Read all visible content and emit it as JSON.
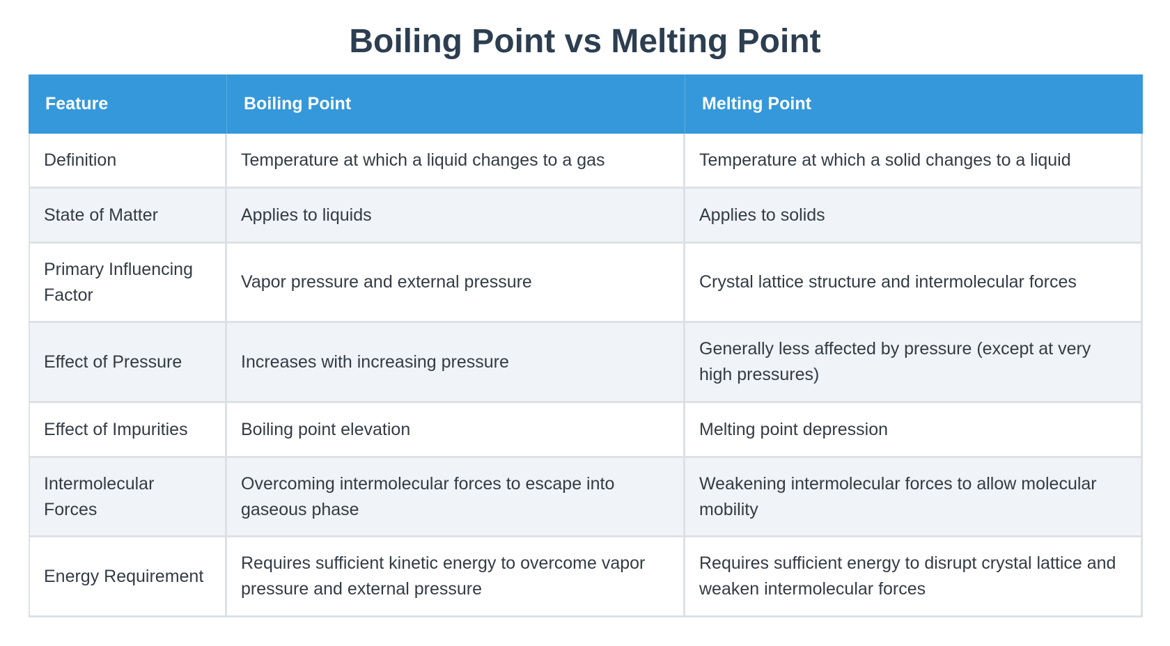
{
  "title": "Boiling Point vs Melting Point",
  "colors": {
    "header_bg": "#3498db",
    "header_text": "#ffffff",
    "title": "#2c3e50",
    "row_alt": "#f0f3f7",
    "border": "#dde1e5"
  },
  "table": {
    "headers": [
      "Feature",
      "Boiling Point",
      "Melting Point"
    ],
    "rows": [
      {
        "feature": "Definition",
        "boiling": "Temperature at which a liquid changes to a gas",
        "melting": "Temperature at which a solid changes to a liquid"
      },
      {
        "feature": "State of Matter",
        "boiling": "Applies to liquids",
        "melting": "Applies to solids"
      },
      {
        "feature": "Primary Influencing Factor",
        "boiling": "Vapor pressure and external pressure",
        "melting": "Crystal lattice structure and intermolecular forces"
      },
      {
        "feature": "Effect of Pressure",
        "boiling": "Increases with increasing pressure",
        "melting": "Generally less affected by pressure (except at very high pressures)"
      },
      {
        "feature": "Effect of Impurities",
        "boiling": "Boiling point elevation",
        "melting": "Melting point depression"
      },
      {
        "feature": "Intermolecular Forces",
        "boiling": "Overcoming intermolecular forces to escape into gaseous phase",
        "melting": "Weakening intermolecular forces to allow molecular mobility"
      },
      {
        "feature": "Energy Requirement",
        "boiling": "Requires sufficient kinetic energy to overcome vapor pressure and external pressure",
        "melting": "Requires sufficient energy to disrupt crystal lattice and weaken intermolecular forces"
      }
    ]
  }
}
